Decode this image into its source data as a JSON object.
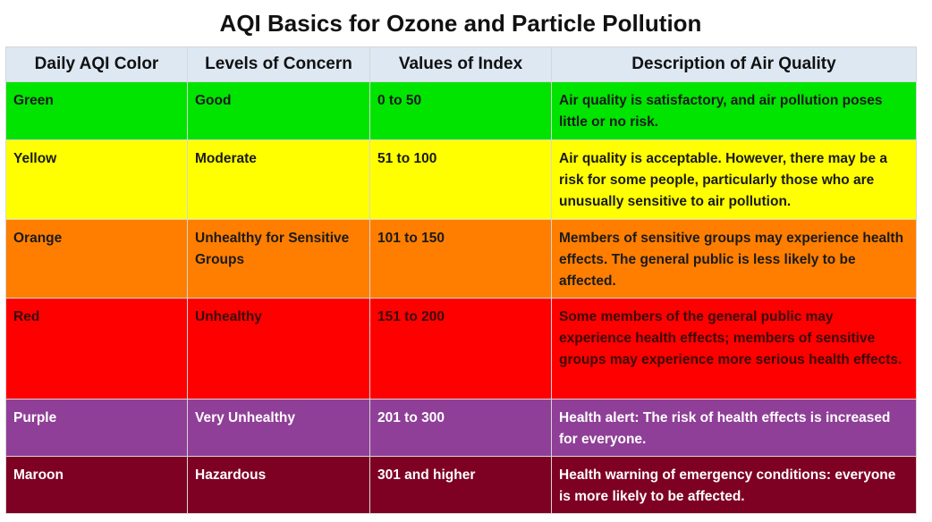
{
  "title": "AQI Basics for Ozone and Particle Pollution",
  "headers": [
    "Daily AQI Color",
    "Levels of Concern",
    "Values of Index",
    "Description of Air Quality"
  ],
  "rows": [
    {
      "color_name": "Green",
      "concern": "Good",
      "values": "0 to 50",
      "description": "Air quality is satisfactory, and air pollution poses little or no risk.",
      "bg": "#00e400",
      "fg": "#1a1a1a"
    },
    {
      "color_name": "Yellow",
      "concern": "Moderate",
      "values": "51 to 100",
      "description": "Air quality is acceptable. However, there may be a risk for some people, particularly those who are unusually sensitive to air pollution.",
      "bg": "#ffff00",
      "fg": "#1a1a1a"
    },
    {
      "color_name": "Orange",
      "concern": "Unhealthy for Sensitive Groups",
      "values": "101 to 150",
      "description": "Members of sensitive groups may experience health effects. The general public is less likely to be affected.",
      "bg": "#ff7e00",
      "fg": "#1a1a1a"
    },
    {
      "color_name": "Red",
      "concern": "Unhealthy",
      "values": "151 to 200",
      "description": "Some members of the general public may experience health effects; members of sensitive groups may experience more serious health effects.",
      "bg": "#ff0000",
      "fg": "#3a0a0a"
    },
    {
      "color_name": "Purple",
      "concern": "Very Unhealthy",
      "values": "201 to 300",
      "description": "Health alert: The risk of health effects is increased for everyone.",
      "bg": "#8f3f97",
      "fg": "#ffffff"
    },
    {
      "color_name": "Maroon",
      "concern": "Hazardous",
      "values": "301 and higher",
      "description": "Health warning of emergency conditions: everyone is more likely to be affected.",
      "bg": "#7e0023",
      "fg": "#ffffff"
    }
  ]
}
